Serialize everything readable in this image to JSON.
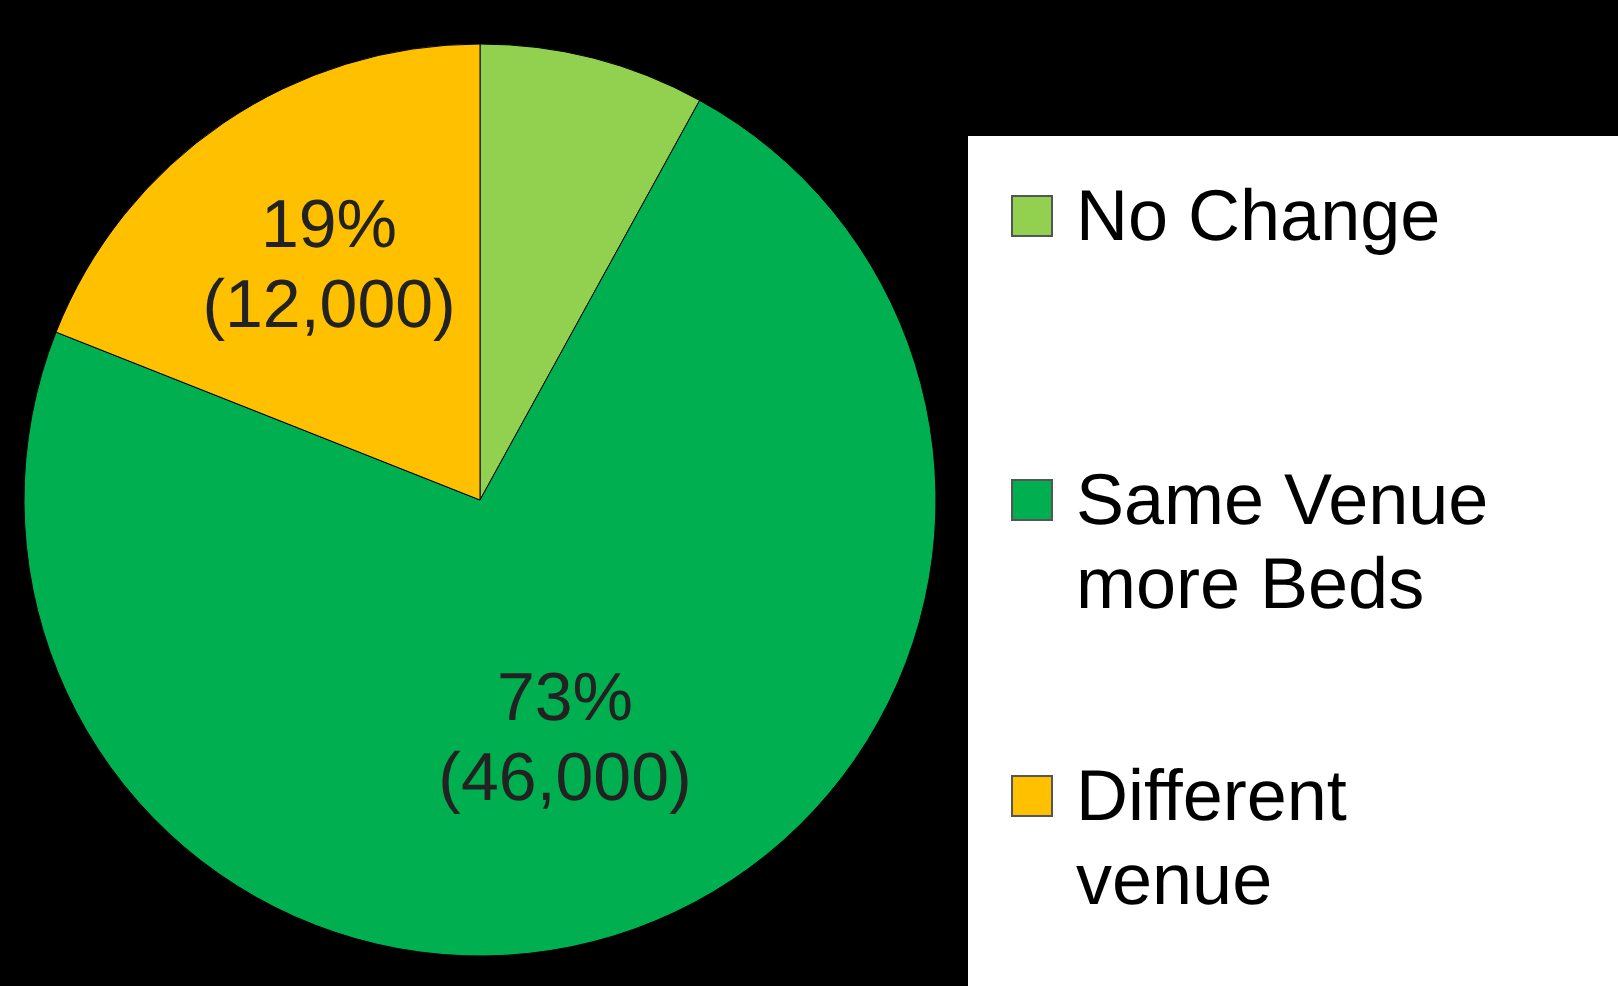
{
  "chart_data": {
    "type": "pie",
    "categories": [
      "No Change",
      "Same Venue more Beds",
      "Different venue"
    ],
    "values": [
      8,
      73,
      19
    ],
    "colors": [
      "#92d050",
      "#00b050",
      "#ffc000"
    ],
    "value_labels": [
      null,
      "73% (46,000)",
      "19% (12,000)"
    ],
    "legend": "right"
  }
}
